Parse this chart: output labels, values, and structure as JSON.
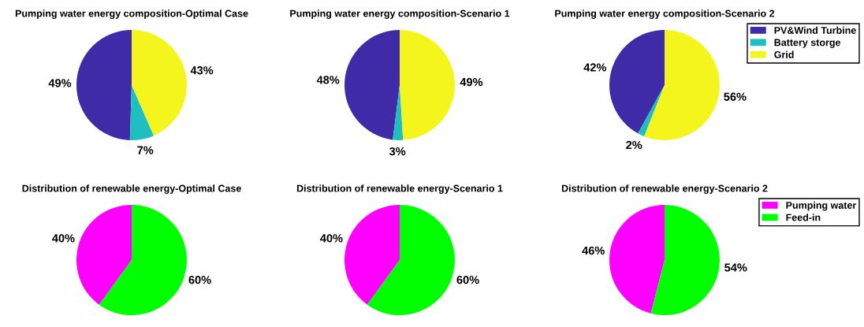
{
  "chart_data": [
    {
      "type": "pie",
      "title": "Pumping water energy composition-Optimal Case",
      "categories": [
        null,
        null,
        null
      ],
      "values": [
        49,
        7,
        43
      ],
      "colors": [
        "#3f2aa8",
        "#1fbfbf",
        "#f5f51e"
      ],
      "value_labels": [
        "49%",
        "7%",
        "43%"
      ]
    },
    {
      "type": "pie",
      "title": "Pumping water energy composition-Scenario 1",
      "categories": [
        null,
        null,
        null
      ],
      "values": [
        48,
        3,
        49
      ],
      "colors": [
        "#3f2aa8",
        "#1fbfbf",
        "#f5f51e"
      ],
      "value_labels": [
        "48%",
        "3%",
        "49%"
      ]
    },
    {
      "type": "pie",
      "title": "Pumping water energy composition-Scenario 2",
      "categories": [
        "PV&Wind Turbine",
        "Battery storge",
        "Grid"
      ],
      "values": [
        42,
        2,
        56
      ],
      "colors": [
        "#3f2aa8",
        "#1fbfbf",
        "#f5f51e"
      ],
      "value_labels": [
        "42%",
        "2%",
        "56%"
      ],
      "legend": "top right"
    },
    {
      "type": "pie",
      "title": "Distribution of renewable energy-Optimal Case",
      "categories": [
        null,
        null
      ],
      "values": [
        40,
        60
      ],
      "colors": [
        "#ff00ff",
        "#00ff00"
      ],
      "value_labels": [
        "40%",
        "60%"
      ]
    },
    {
      "type": "pie",
      "title": "Distribution of renewable energy-Scenario 1",
      "categories": [
        null,
        null
      ],
      "values": [
        40,
        60
      ],
      "colors": [
        "#ff00ff",
        "#00ff00"
      ],
      "value_labels": [
        "40%",
        "60%"
      ]
    },
    {
      "type": "pie",
      "title": "Distribution of renewable energy-Scenario 2",
      "categories": [
        "Pumping water",
        "Feed-in"
      ],
      "values": [
        46,
        54
      ],
      "colors": [
        "#ff00ff",
        "#00ff00"
      ],
      "value_labels": [
        "46%",
        "54%"
      ],
      "legend": "top right"
    }
  ]
}
